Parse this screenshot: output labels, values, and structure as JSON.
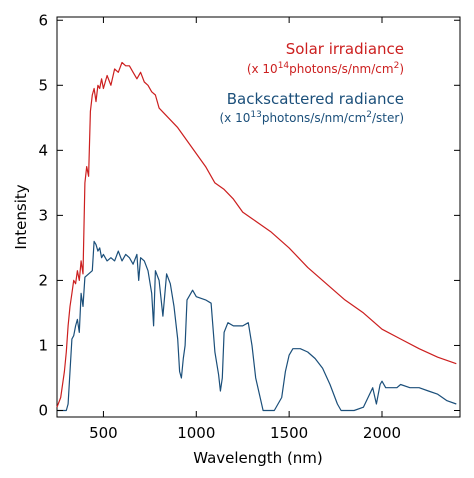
{
  "chart_data": {
    "type": "line",
    "xlabel": "Wavelength (nm)",
    "ylabel": "Intensity",
    "xlim": [
      250,
      2420
    ],
    "ylim": [
      -0.1,
      6.05
    ],
    "xticks": [
      500,
      1000,
      1500,
      2000
    ],
    "yticks": [
      0,
      1,
      2,
      3,
      4,
      5,
      6
    ],
    "grid": false,
    "legend_placement": "top-right",
    "series": [
      {
        "name": "Solar irradiance",
        "unit": {
          "pre": "(x 10",
          "exp": "14",
          "mid": "photons/s/nm/cm",
          "exp2": "2",
          "post": ")"
        },
        "color": "#cc1f1f",
        "x": [
          250,
          270,
          290,
          300,
          310,
          320,
          330,
          340,
          350,
          360,
          370,
          380,
          390,
          400,
          410,
          420,
          430,
          440,
          450,
          460,
          470,
          480,
          490,
          500,
          520,
          540,
          560,
          580,
          600,
          620,
          640,
          660,
          680,
          700,
          720,
          740,
          760,
          780,
          800,
          850,
          900,
          950,
          1000,
          1050,
          1100,
          1150,
          1200,
          1250,
          1300,
          1350,
          1400,
          1500,
          1600,
          1700,
          1800,
          1900,
          2000,
          2100,
          2200,
          2300,
          2400
        ],
        "y": [
          0.05,
          0.2,
          0.6,
          0.9,
          1.3,
          1.6,
          1.8,
          2.0,
          1.95,
          2.15,
          2.0,
          2.3,
          2.1,
          3.5,
          3.75,
          3.6,
          4.6,
          4.85,
          4.95,
          4.75,
          5.0,
          4.95,
          5.1,
          4.95,
          5.15,
          5.0,
          5.25,
          5.2,
          5.35,
          5.3,
          5.3,
          5.2,
          5.1,
          5.2,
          5.05,
          5.0,
          4.9,
          4.85,
          4.65,
          4.5,
          4.35,
          4.15,
          3.95,
          3.75,
          3.5,
          3.4,
          3.25,
          3.05,
          2.95,
          2.85,
          2.75,
          2.5,
          2.2,
          1.95,
          1.7,
          1.5,
          1.25,
          1.1,
          0.95,
          0.82,
          0.72
        ]
      },
      {
        "name": "Backscattered radiance",
        "unit": {
          "pre": "(x 10",
          "exp": "13",
          "mid": "photons/s/nm/cm",
          "exp2": "2",
          "post": "/ster)"
        },
        "color": "#1b4f7a",
        "x": [
          250,
          300,
          310,
          320,
          330,
          340,
          350,
          360,
          370,
          380,
          390,
          400,
          420,
          440,
          450,
          460,
          470,
          480,
          490,
          500,
          520,
          540,
          560,
          580,
          600,
          620,
          640,
          660,
          680,
          690,
          700,
          720,
          740,
          760,
          770,
          780,
          800,
          820,
          840,
          860,
          880,
          900,
          910,
          920,
          930,
          940,
          950,
          960,
          980,
          1000,
          1050,
          1080,
          1100,
          1120,
          1130,
          1140,
          1150,
          1170,
          1200,
          1250,
          1280,
          1300,
          1320,
          1340,
          1360,
          1380,
          1400,
          1420,
          1440,
          1460,
          1480,
          1500,
          1520,
          1560,
          1600,
          1640,
          1680,
          1720,
          1760,
          1780,
          1800,
          1820,
          1850,
          1900,
          1950,
          1970,
          1990,
          2000,
          2020,
          2050,
          2080,
          2100,
          2150,
          2200,
          2250,
          2300,
          2350,
          2400
        ],
        "y": [
          0.0,
          0.0,
          0.1,
          0.6,
          1.1,
          1.15,
          1.3,
          1.4,
          1.2,
          1.8,
          1.6,
          2.05,
          2.1,
          2.15,
          2.6,
          2.55,
          2.45,
          2.5,
          2.35,
          2.4,
          2.3,
          2.35,
          2.3,
          2.45,
          2.3,
          2.4,
          2.35,
          2.25,
          2.4,
          2.0,
          2.35,
          2.3,
          2.15,
          1.8,
          1.3,
          2.15,
          2.0,
          1.45,
          2.1,
          1.95,
          1.6,
          1.1,
          0.6,
          0.5,
          0.8,
          1.0,
          1.7,
          1.75,
          1.85,
          1.75,
          1.7,
          1.65,
          0.9,
          0.55,
          0.3,
          0.5,
          1.2,
          1.35,
          1.3,
          1.3,
          1.35,
          1.0,
          0.5,
          0.25,
          0.0,
          0.0,
          0.0,
          0.0,
          0.1,
          0.2,
          0.6,
          0.85,
          0.95,
          0.95,
          0.9,
          0.8,
          0.65,
          0.4,
          0.1,
          0.0,
          0.0,
          0.0,
          0.0,
          0.05,
          0.35,
          0.1,
          0.4,
          0.45,
          0.35,
          0.35,
          0.35,
          0.4,
          0.35,
          0.35,
          0.3,
          0.25,
          0.15,
          0.1
        ]
      }
    ]
  }
}
